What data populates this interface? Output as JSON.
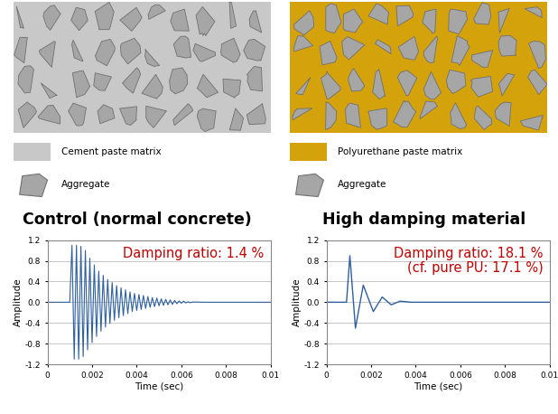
{
  "diagrams": [
    {
      "title": "Control (normal concrete)",
      "matrix": {
        "label": "Cement paste matrix",
        "color": "#c8c8c8"
      },
      "aggregate": {
        "label": "Aggregate",
        "color": "#a6a6a6"
      }
    },
    {
      "title": "High damping material",
      "matrix": {
        "label": "Polyurethane paste matrix",
        "color": "#d4a20a"
      },
      "aggregate": {
        "label": "Aggregate",
        "color": "#a6a6a6"
      }
    }
  ],
  "chart_data": [
    {
      "type": "line",
      "x_label": "Time (sec)",
      "y_label": "Amplitude",
      "annotation": "Damping ratio: 1.4 %",
      "color": "#2e5f9e",
      "xlim": [
        0,
        0.01
      ],
      "ylim": [
        -1.2,
        1.2
      ],
      "xticks": [
        0,
        0.002,
        0.004,
        0.006,
        0.008,
        0.01
      ],
      "yticks": [
        -1.2,
        -0.8,
        -0.4,
        0.0,
        0.4,
        0.8,
        1.2
      ],
      "grid": true,
      "x": [
        0,
        0.001,
        0.0011,
        0.0012,
        0.0013,
        0.0014,
        0.0015,
        0.0016,
        0.0017,
        0.0018,
        0.0019,
        0.002,
        0.0021,
        0.0022,
        0.0023,
        0.0024,
        0.0025,
        0.0026,
        0.0027,
        0.0028,
        0.0029,
        0.003,
        0.0031,
        0.0032,
        0.0033,
        0.0034,
        0.0035,
        0.0036,
        0.0037,
        0.0038,
        0.0039,
        0.004,
        0.0041,
        0.0042,
        0.0043,
        0.0044,
        0.0045,
        0.0046,
        0.0047,
        0.0048,
        0.0049,
        0.005,
        0.0051,
        0.0052,
        0.0053,
        0.0054,
        0.0055,
        0.0056,
        0.0057,
        0.0058,
        0.0059,
        0.006,
        0.0061,
        0.0062,
        0.0063,
        0.0064,
        0.0065,
        0.007,
        0.01
      ],
      "values": [
        0,
        0,
        1.1,
        -1.1,
        1.1,
        -1.1,
        1.08,
        -1.05,
        1.0,
        -0.92,
        0.85,
        -0.78,
        0.72,
        -0.66,
        0.6,
        -0.56,
        0.52,
        -0.48,
        0.44,
        -0.41,
        0.38,
        -0.35,
        0.32,
        -0.3,
        0.28,
        -0.26,
        0.24,
        -0.22,
        0.2,
        -0.18,
        0.17,
        -0.16,
        0.15,
        -0.14,
        0.13,
        -0.12,
        0.11,
        -0.1,
        0.09,
        -0.085,
        0.08,
        -0.07,
        0.065,
        -0.06,
        0.055,
        -0.05,
        0.045,
        -0.04,
        0.035,
        -0.03,
        0.025,
        -0.02,
        0.02,
        -0.015,
        0.01,
        -0.01,
        0.005,
        0,
        0
      ]
    },
    {
      "type": "line",
      "x_label": "Time (sec)",
      "y_label": "Amplitude",
      "annotation": "Damping ratio: 18.1 %\n(cf. pure PU: 17.1 %)",
      "color": "#2e5f9e",
      "xlim": [
        0,
        0.01
      ],
      "ylim": [
        -1.2,
        1.2
      ],
      "xticks": [
        0,
        0.002,
        0.004,
        0.006,
        0.008,
        0.01
      ],
      "yticks": [
        -1.2,
        -0.8,
        -0.4,
        0.0,
        0.4,
        0.8,
        1.2
      ],
      "grid": true,
      "x": [
        0,
        0.0009,
        0.00105,
        0.0013,
        0.00165,
        0.0021,
        0.0025,
        0.0029,
        0.0033,
        0.0038,
        0.01
      ],
      "values": [
        0,
        0,
        0.9,
        -0.5,
        0.33,
        -0.18,
        0.1,
        -0.05,
        0.02,
        0,
        0
      ]
    }
  ]
}
